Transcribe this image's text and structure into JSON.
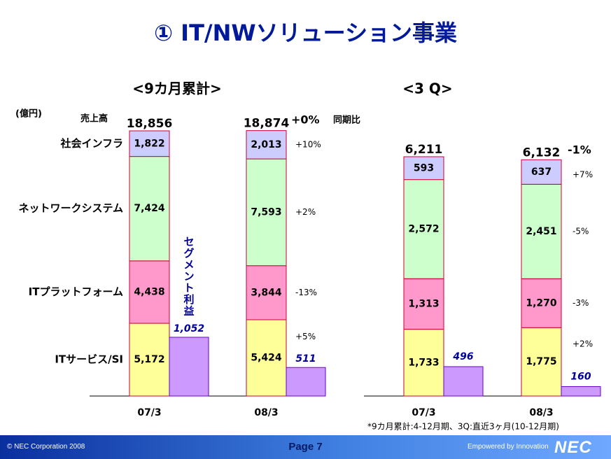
{
  "slide": {
    "title": "① IT/NWソリューション事業"
  },
  "chart_data": [
    {
      "type": "bar",
      "stacked": true,
      "title": "<9カ月累計>",
      "unit_label": "(億円)",
      "sales_label": "売上高",
      "yoy_label": "同期比",
      "categories": [
        "07/3",
        "08/3"
      ],
      "totals": [
        18856,
        18874
      ],
      "totals_text": [
        "18,856",
        "18,874"
      ],
      "total_change": "+0%",
      "series": [
        {
          "name": "ITサービス/SI",
          "values": [
            5172,
            5424
          ],
          "labels": [
            "5,172",
            "5,424"
          ],
          "change": "+5%",
          "color": "#ffff99"
        },
        {
          "name": "ITプラットフォーム",
          "values": [
            4438,
            3844
          ],
          "labels": [
            "4,438",
            "3,844"
          ],
          "change": "-13%",
          "color": "#ff99cc"
        },
        {
          "name": "ネットワークシステム",
          "values": [
            7424,
            7593
          ],
          "labels": [
            "7,424",
            "7,593"
          ],
          "change": "+2%",
          "color": "#ccffcc"
        },
        {
          "name": "社会インフラ",
          "values": [
            1822,
            2013
          ],
          "labels": [
            "1,822",
            "2,013"
          ],
          "change": "+10%",
          "color": "#ccccff"
        }
      ],
      "segment_profit": {
        "name": "セグメント利益",
        "values": [
          1052,
          511
        ],
        "labels": [
          "1,052",
          "511"
        ],
        "color": "#cc99ff"
      },
      "grid": false
    },
    {
      "type": "bar",
      "stacked": true,
      "title": "<3 Q>",
      "categories": [
        "07/3",
        "08/3"
      ],
      "totals": [
        6211,
        6132
      ],
      "totals_text": [
        "6,211",
        "6,132"
      ],
      "total_change": "-1%",
      "series": [
        {
          "name": "ITサービス/SI",
          "values": [
            1733,
            1775
          ],
          "labels": [
            "1,733",
            "1,775"
          ],
          "change": "+2%",
          "color": "#ffff99"
        },
        {
          "name": "ITプラットフォーム",
          "values": [
            1313,
            1270
          ],
          "labels": [
            "1,313",
            "1,270"
          ],
          "change": "-3%",
          "color": "#ff99cc"
        },
        {
          "name": "ネットワークシステム",
          "values": [
            2572,
            2451
          ],
          "labels": [
            "2,572",
            "2,451"
          ],
          "change": "-5%",
          "color": "#ccffcc"
        },
        {
          "name": "社会インフラ",
          "values": [
            593,
            637
          ],
          "labels": [
            "593",
            "637"
          ],
          "change": "+7%",
          "color": "#ccccff"
        }
      ],
      "segment_profit": {
        "values": [
          496,
          160
        ],
        "labels": [
          "496",
          "160"
        ],
        "color": "#cc99ff"
      },
      "grid": false
    }
  ],
  "footnote": "*9カ月累計:4-12月期、3Q:直近3ヶ月(10-12月期)",
  "footer": {
    "copyright": "© NEC Corporation 2008",
    "page": "Page 7",
    "tagline": "Empowered by Innovation",
    "logo_text": "NEC"
  }
}
